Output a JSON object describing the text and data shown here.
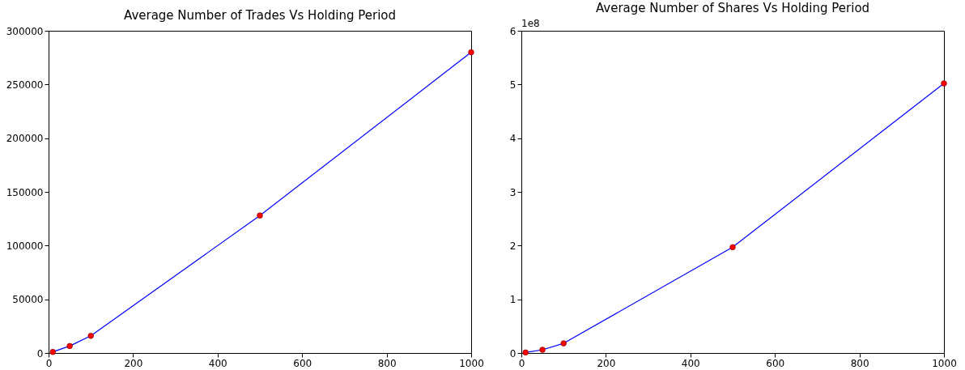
{
  "chart_data": [
    {
      "type": "line",
      "title": "Average Number of Trades Vs Holding Period",
      "x": [
        10,
        50,
        100,
        500,
        1000
      ],
      "xlim": [
        0,
        1000
      ],
      "xticks": [
        0,
        200,
        400,
        600,
        800,
        1000
      ],
      "ylim": [
        0,
        300000
      ],
      "yticks": [
        0,
        50000,
        100000,
        150000,
        200000,
        250000,
        300000
      ],
      "grid": false,
      "legend": false,
      "marker": "circle",
      "series": [
        {
          "color": "#0000ff",
          "values": [
            1000,
            6500,
            16000,
            128000,
            280000
          ]
        }
      ]
    },
    {
      "type": "line",
      "title": "Average Number of Shares Vs Holding Period",
      "x": [
        10,
        50,
        100,
        500,
        1000
      ],
      "xlim": [
        0,
        1000
      ],
      "xticks": [
        0,
        200,
        400,
        600,
        800,
        1000
      ],
      "ylim": [
        0,
        6
      ],
      "yticks": [
        0,
        1,
        2,
        3,
        4,
        5,
        6
      ],
      "grid": false,
      "legend": false,
      "marker": "circle",
      "annotations": [
        "1e8"
      ],
      "series": [
        {
          "color": "#0000ff",
          "values": [
            0.01,
            0.06,
            0.18,
            1.97,
            5.02
          ]
        }
      ]
    }
  ]
}
